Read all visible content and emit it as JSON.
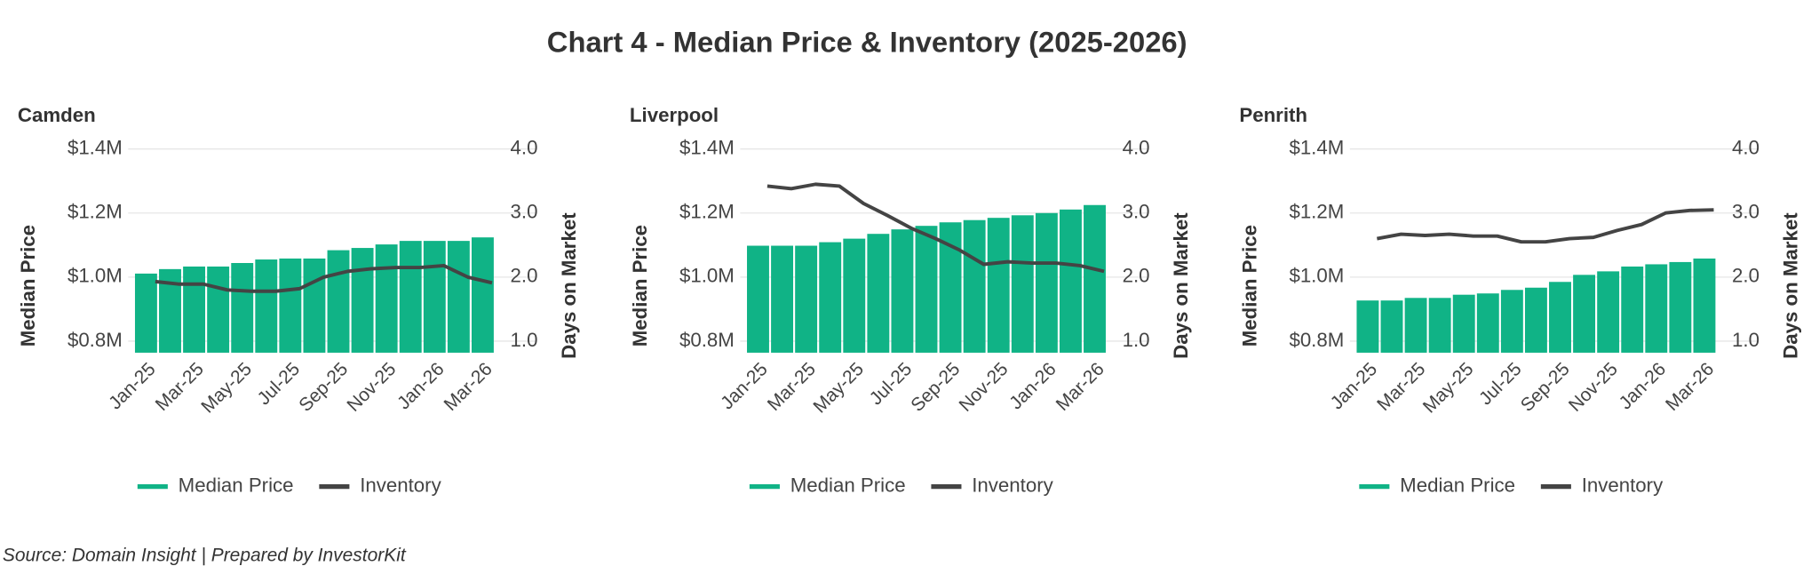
{
  "title": "Chart 4 - Median Price & Inventory (2025-2026)",
  "source": "Source: Domain Insight | Prepared by InvestorKit",
  "chart_data": [
    {
      "type": "bar",
      "title": "Camden",
      "categories": [
        "Jan-25",
        null,
        "Mar-25",
        null,
        "May-25",
        null,
        "Jul-25",
        null,
        "Sep-25",
        null,
        "Nov-25",
        null,
        "Jan-26",
        null,
        "Mar-26"
      ],
      "series": [
        {
          "name": "Median Price",
          "type": "bar",
          "color": "#10b386",
          "values": [
            1011000,
            1025000,
            1033000,
            1033000,
            1044000,
            1055000,
            1058000,
            1058000,
            1084000,
            1091000,
            1102000,
            1113000,
            1113000,
            1113000,
            1124000
          ]
        },
        {
          "name": "Inventory",
          "type": "line",
          "axis": "y2",
          "color": "#444444",
          "values": [
            1.93,
            1.89,
            1.89,
            1.8,
            1.78,
            1.78,
            1.82,
            2.0,
            2.09,
            2.13,
            2.15,
            2.15,
            2.18,
            2.0,
            1.91
          ]
        }
      ],
      "ylabel": "Median Price",
      "y2label": "Days on Market",
      "ylim": [
        764000,
        1400000
      ],
      "yticks": [
        {
          "value": 800000,
          "label": "$0.8M"
        },
        {
          "value": 1000000,
          "label": "$1.0M"
        },
        {
          "value": 1200000,
          "label": "$1.2M"
        },
        {
          "value": 1400000,
          "label": "$1.4M"
        }
      ],
      "y2lim": [
        0.82,
        4.0
      ],
      "y2ticks": [
        {
          "value": 1,
          "label": "1.0"
        },
        {
          "value": 2,
          "label": "2.0"
        },
        {
          "value": 3,
          "label": "3.0"
        },
        {
          "value": 4,
          "label": "4.0"
        }
      ],
      "grid": true,
      "legend": "bottom"
    },
    {
      "type": "bar",
      "title": "Liverpool",
      "categories": [
        "Jan-25",
        null,
        "Mar-25",
        null,
        "May-25",
        null,
        "Jul-25",
        null,
        "Sep-25",
        null,
        "Nov-25",
        null,
        "Jan-26",
        null,
        "Mar-26"
      ],
      "series": [
        {
          "name": "Median Price",
          "type": "bar",
          "color": "#10b386",
          "values": [
            1098000,
            1098000,
            1098000,
            1109000,
            1120000,
            1135000,
            1149000,
            1160000,
            1171000,
            1178000,
            1185000,
            1193000,
            1200000,
            1211000,
            1225000
          ]
        },
        {
          "name": "Inventory",
          "type": "line",
          "axis": "y2",
          "color": "#444444",
          "values": [
            3.42,
            3.38,
            3.45,
            3.42,
            3.15,
            2.96,
            2.76,
            2.6,
            2.42,
            2.2,
            2.24,
            2.22,
            2.22,
            2.18,
            2.09
          ]
        }
      ],
      "ylabel": "Median Price",
      "y2label": "Days on Market",
      "ylim": [
        764000,
        1400000
      ],
      "yticks": [
        {
          "value": 800000,
          "label": "$0.8M"
        },
        {
          "value": 1000000,
          "label": "$1.0M"
        },
        {
          "value": 1200000,
          "label": "$1.2M"
        },
        {
          "value": 1400000,
          "label": "$1.4M"
        }
      ],
      "y2lim": [
        0.82,
        4.0
      ],
      "y2ticks": [
        {
          "value": 1,
          "label": "1.0"
        },
        {
          "value": 2,
          "label": "2.0"
        },
        {
          "value": 3,
          "label": "3.0"
        },
        {
          "value": 4,
          "label": "4.0"
        }
      ],
      "grid": true,
      "legend": "bottom"
    },
    {
      "type": "bar",
      "title": "Penrith",
      "categories": [
        "Jan-25",
        null,
        "Mar-25",
        null,
        "May-25",
        null,
        "Jul-25",
        null,
        "Sep-25",
        null,
        "Nov-25",
        null,
        "Jan-26",
        null,
        "Mar-26"
      ],
      "series": [
        {
          "name": "Median Price",
          "type": "bar",
          "color": "#10b386",
          "values": [
            927000,
            927000,
            935000,
            935000,
            945000,
            949000,
            960000,
            967000,
            985000,
            1007000,
            1018000,
            1033000,
            1040000,
            1047000,
            1058000
          ]
        },
        {
          "name": "Inventory",
          "type": "line",
          "axis": "y2",
          "color": "#444444",
          "values": [
            2.6,
            2.67,
            2.65,
            2.67,
            2.64,
            2.64,
            2.55,
            2.55,
            2.6,
            2.62,
            2.73,
            2.82,
            3.0,
            3.04,
            3.05
          ]
        }
      ],
      "ylabel": "Median Price",
      "y2label": "Days on Market",
      "ylim": [
        764000,
        1400000
      ],
      "yticks": [
        {
          "value": 800000,
          "label": "$0.8M"
        },
        {
          "value": 1000000,
          "label": "$1.0M"
        },
        {
          "value": 1200000,
          "label": "$1.2M"
        },
        {
          "value": 1400000,
          "label": "$1.4M"
        }
      ],
      "y2lim": [
        0.82,
        4.0
      ],
      "y2ticks": [
        {
          "value": 1,
          "label": "1.0"
        },
        {
          "value": 2,
          "label": "2.0"
        },
        {
          "value": 3,
          "label": "3.0"
        },
        {
          "value": 4,
          "label": "4.0"
        }
      ],
      "grid": true,
      "legend": "bottom"
    }
  ]
}
